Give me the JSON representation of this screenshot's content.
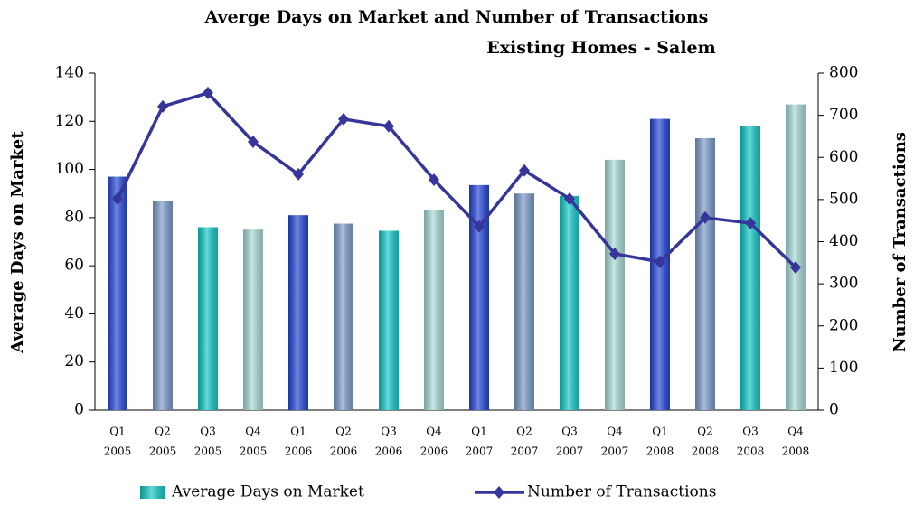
{
  "chart_data": {
    "type": "bar-line",
    "title": "Averge Days on Market and Number of Transactions",
    "subtitle": "Existing Homes - Salem",
    "y_label": "Average Days on Market",
    "y2_label": "Number of Transactions",
    "categories": [
      [
        "Q1",
        "2005"
      ],
      [
        "Q2",
        "2005"
      ],
      [
        "Q3",
        "2005"
      ],
      [
        "Q4",
        "2005"
      ],
      [
        "Q1",
        "2006"
      ],
      [
        "Q2",
        "2006"
      ],
      [
        "Q3",
        "2006"
      ],
      [
        "Q4",
        "2006"
      ],
      [
        "Q1",
        "2007"
      ],
      [
        "Q2",
        "2007"
      ],
      [
        "Q3",
        "2007"
      ],
      [
        "Q4",
        "2007"
      ],
      [
        "Q1",
        "2008"
      ],
      [
        "Q2",
        "2008"
      ],
      [
        "Q3",
        "2008"
      ],
      [
        "Q4",
        "2008"
      ]
    ],
    "series": [
      {
        "name": "Average Days on Market",
        "type": "bar",
        "color": "#12c9c9",
        "bar_colors": [
          "#2446d8",
          "#7d9ccc",
          "#12c9c9",
          "#a9dcd8"
        ],
        "values": [
          97,
          87,
          76,
          75,
          81,
          77.5,
          74.5,
          83,
          93.5,
          90,
          89,
          104,
          121,
          113,
          118,
          127
        ]
      },
      {
        "name": "Number of Transactions",
        "type": "line",
        "axis": "y2",
        "color": "#36359a",
        "values": [
          502,
          721,
          753,
          637,
          560,
          691,
          674,
          547,
          436,
          569,
          502,
          371,
          352,
          457,
          444,
          339
        ]
      }
    ],
    "ylim": [
      0,
      140
    ],
    "yticks": [
      0,
      20,
      40,
      60,
      80,
      100,
      120,
      140
    ],
    "y2lim": [
      0,
      800
    ],
    "y2ticks": [
      0,
      100,
      200,
      300,
      400,
      500,
      600,
      700,
      800
    ],
    "legend": "bottom"
  }
}
